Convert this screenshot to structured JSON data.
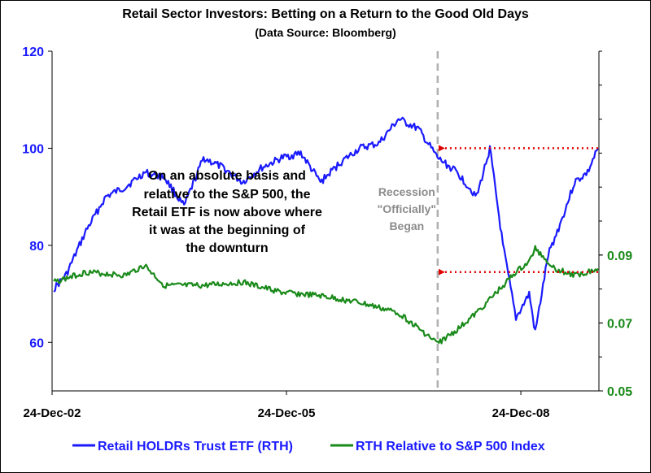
{
  "chart_data": {
    "type": "line",
    "title": "Retail Sector Investors: Betting on a Return to the Good Old Days",
    "subtitle": "(Data Source: Bloomberg)",
    "x_ticks": [
      "24-Dec-02",
      "24-Dec-05",
      "24-Dec-08"
    ],
    "x_range": [
      "24-Dec-02",
      "24-Dec-09"
    ],
    "y_left": {
      "range": [
        50,
        120
      ],
      "ticks": [
        "120",
        "100",
        "80",
        "60"
      ]
    },
    "y_right": {
      "range": [
        0.05,
        0.15
      ],
      "ticks": [
        "0.09",
        "0.07",
        "0.05"
      ]
    },
    "grid": false,
    "legend_position": "bottom",
    "series": [
      {
        "name": "Retail HOLDRs Trust ETF (RTH)",
        "axis": "left",
        "color": "#1a1aff",
        "points": [
          [
            "2003-01-01",
            71
          ],
          [
            "2003-03-01",
            74
          ],
          [
            "2003-06-01",
            83
          ],
          [
            "2003-09-01",
            90
          ],
          [
            "2003-12-01",
            92
          ],
          [
            "2004-03-01",
            95
          ],
          [
            "2004-06-01",
            94
          ],
          [
            "2004-09-01",
            88
          ],
          [
            "2004-12-01",
            98
          ],
          [
            "2005-03-01",
            96
          ],
          [
            "2005-06-01",
            93
          ],
          [
            "2005-09-01",
            96
          ],
          [
            "2005-12-01",
            98
          ],
          [
            "2006-03-01",
            99
          ],
          [
            "2006-06-01",
            93
          ],
          [
            "2006-09-01",
            97
          ],
          [
            "2006-12-01",
            100
          ],
          [
            "2007-03-01",
            101
          ],
          [
            "2007-06-01",
            106
          ],
          [
            "2007-09-01",
            104
          ],
          [
            "2007-12-01",
            98
          ],
          [
            "2008-03-01",
            95
          ],
          [
            "2008-06-01",
            90
          ],
          [
            "2008-08-01",
            100
          ],
          [
            "2008-10-01",
            80
          ],
          [
            "2008-12-01",
            65
          ],
          [
            "2009-02-01",
            70
          ],
          [
            "2009-03-01",
            62
          ],
          [
            "2009-05-01",
            78
          ],
          [
            "2009-07-01",
            85
          ],
          [
            "2009-09-01",
            93
          ],
          [
            "2009-11-01",
            95
          ],
          [
            "2009-12-20",
            100
          ]
        ]
      },
      {
        "name": "RTH Relative to S&P 500 Index",
        "axis": "right",
        "color": "#1a8a1a",
        "points": [
          [
            "2003-01-01",
            0.082
          ],
          [
            "2003-06-01",
            0.085
          ],
          [
            "2003-12-01",
            0.084
          ],
          [
            "2004-03-01",
            0.087
          ],
          [
            "2004-06-01",
            0.081
          ],
          [
            "2004-12-01",
            0.081
          ],
          [
            "2005-06-01",
            0.082
          ],
          [
            "2005-12-01",
            0.079
          ],
          [
            "2006-06-01",
            0.078
          ],
          [
            "2006-12-01",
            0.076
          ],
          [
            "2007-06-01",
            0.073
          ],
          [
            "2007-12-01",
            0.064
          ],
          [
            "2008-03-01",
            0.068
          ],
          [
            "2008-06-01",
            0.073
          ],
          [
            "2008-09-01",
            0.079
          ],
          [
            "2008-12-01",
            0.085
          ],
          [
            "2009-02-01",
            0.088
          ],
          [
            "2009-03-01",
            0.092
          ],
          [
            "2009-06-01",
            0.086
          ],
          [
            "2009-09-01",
            0.084
          ],
          [
            "2009-12-20",
            0.086
          ]
        ]
      }
    ],
    "annotations": [
      {
        "id": "recession",
        "text": [
          "Recession",
          "\"Officially\"",
          "Began"
        ],
        "x": "2007-12-01",
        "style": "dashed-vertical-line"
      },
      {
        "id": "note",
        "text": [
          "On an absolute basis and",
          "relative to the S&P 500,  the",
          "Retail ETF is now above where",
          "it was at the beginning of",
          "the downturn"
        ]
      },
      {
        "id": "arrow-rth",
        "axis": "left",
        "value": 100,
        "from": "2009-12-20",
        "to": "2007-12-01",
        "color": "#e00000"
      },
      {
        "id": "arrow-relative",
        "axis": "right",
        "value": 0.085,
        "from": "2009-12-20",
        "to": "2007-12-01",
        "color": "#e00000"
      }
    ]
  }
}
